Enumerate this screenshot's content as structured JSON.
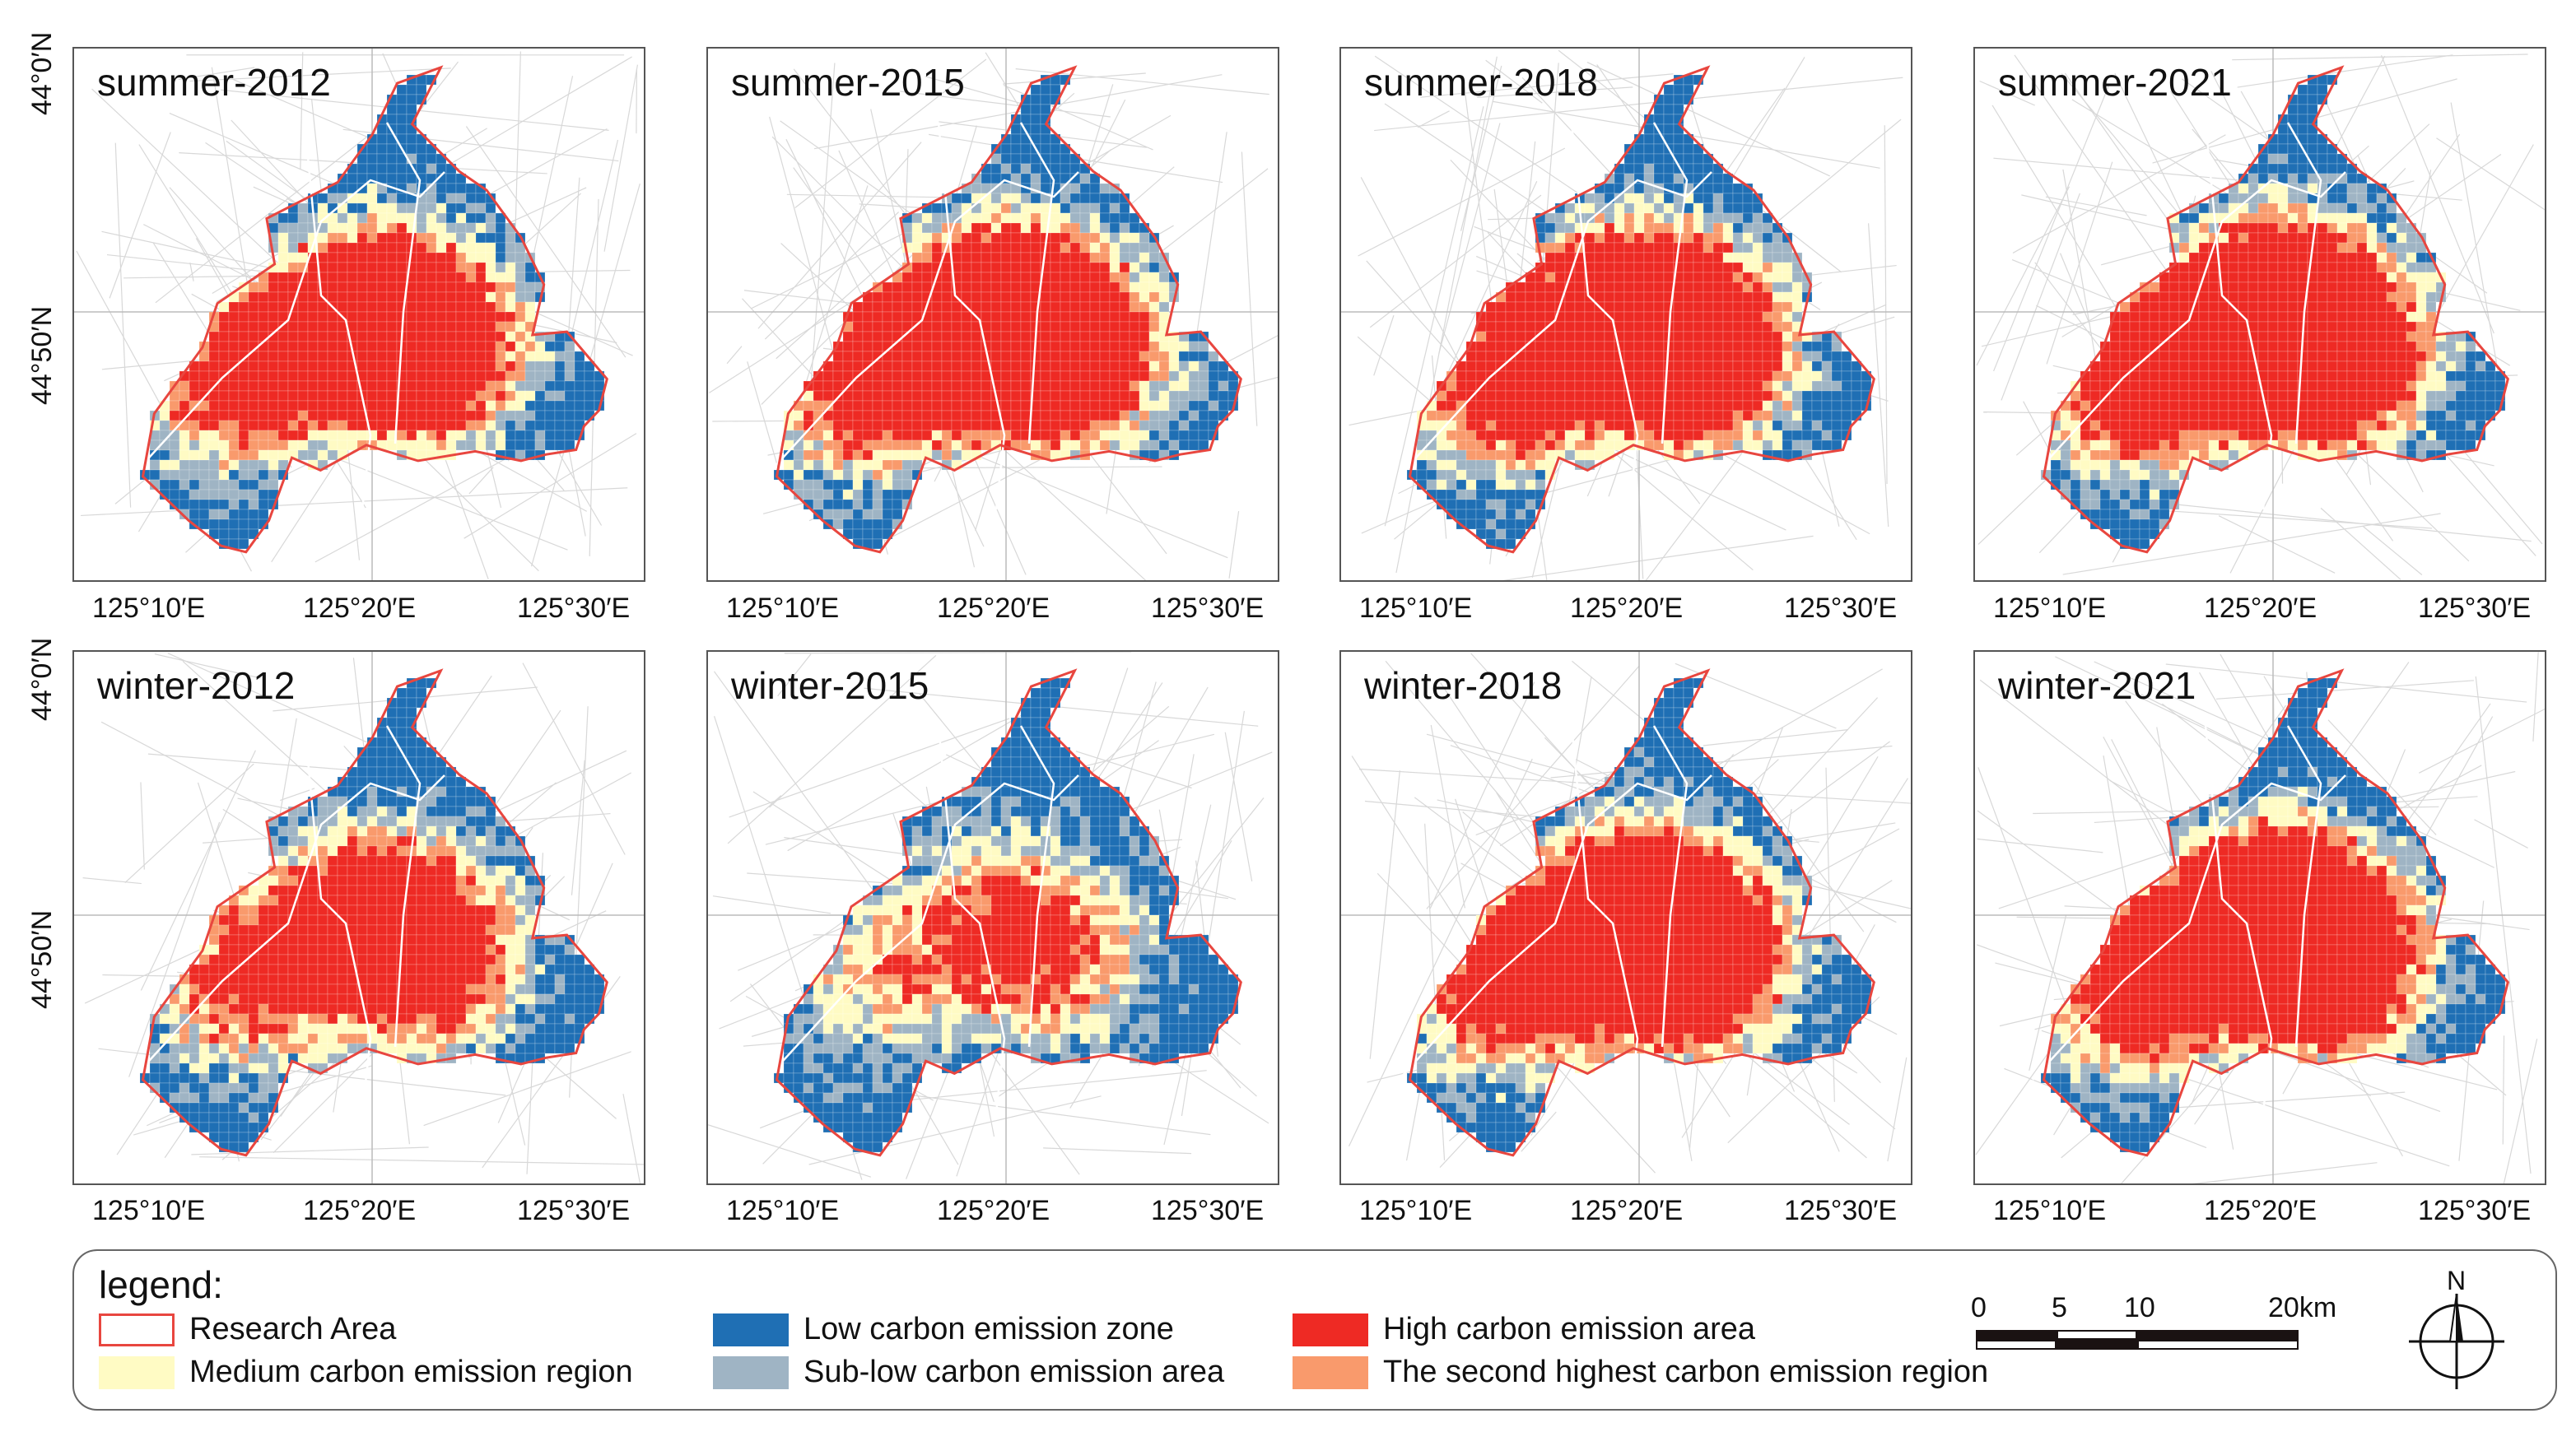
{
  "panels": [
    {
      "title": "summer-2012",
      "season": "summer",
      "year": 2012
    },
    {
      "title": "summer-2015",
      "season": "summer",
      "year": 2015
    },
    {
      "title": "summer-2018",
      "season": "summer",
      "year": 2018
    },
    {
      "title": "summer-2021",
      "season": "summer",
      "year": 2021
    },
    {
      "title": "winter-2012",
      "season": "winter",
      "year": 2012
    },
    {
      "title": "winter-2015",
      "season": "winter",
      "year": 2015
    },
    {
      "title": "winter-2018",
      "season": "winter",
      "year": 2018
    },
    {
      "title": "winter-2021",
      "season": "winter",
      "year": 2021
    }
  ],
  "axes": {
    "x_ticks": [
      "125°10′E",
      "125°20′E",
      "125°30′E"
    ],
    "y_ticks": [
      "44°0′N",
      "44°50′N"
    ]
  },
  "legend": {
    "title": "legend:",
    "items": [
      {
        "label": "Research Area",
        "color": "#ffffff",
        "border": "#e8463f"
      },
      {
        "label": "Medium carbon emission region",
        "color": "#fffbc4"
      },
      {
        "label": "Low carbon emission zone",
        "color": "#1f6fb4"
      },
      {
        "label": "Sub-low carbon emission area",
        "color": "#9fb4c4"
      },
      {
        "label": "High carbon emission area",
        "color": "#ee2a24"
      },
      {
        "label": "The second highest carbon emission region",
        "color": "#f99a6c"
      }
    ]
  },
  "scale_bar": {
    "labels": [
      "0",
      "5",
      "10",
      "20km"
    ]
  },
  "north_arrow": {
    "label": "N",
    "icon": "north-arrow-icon"
  }
}
